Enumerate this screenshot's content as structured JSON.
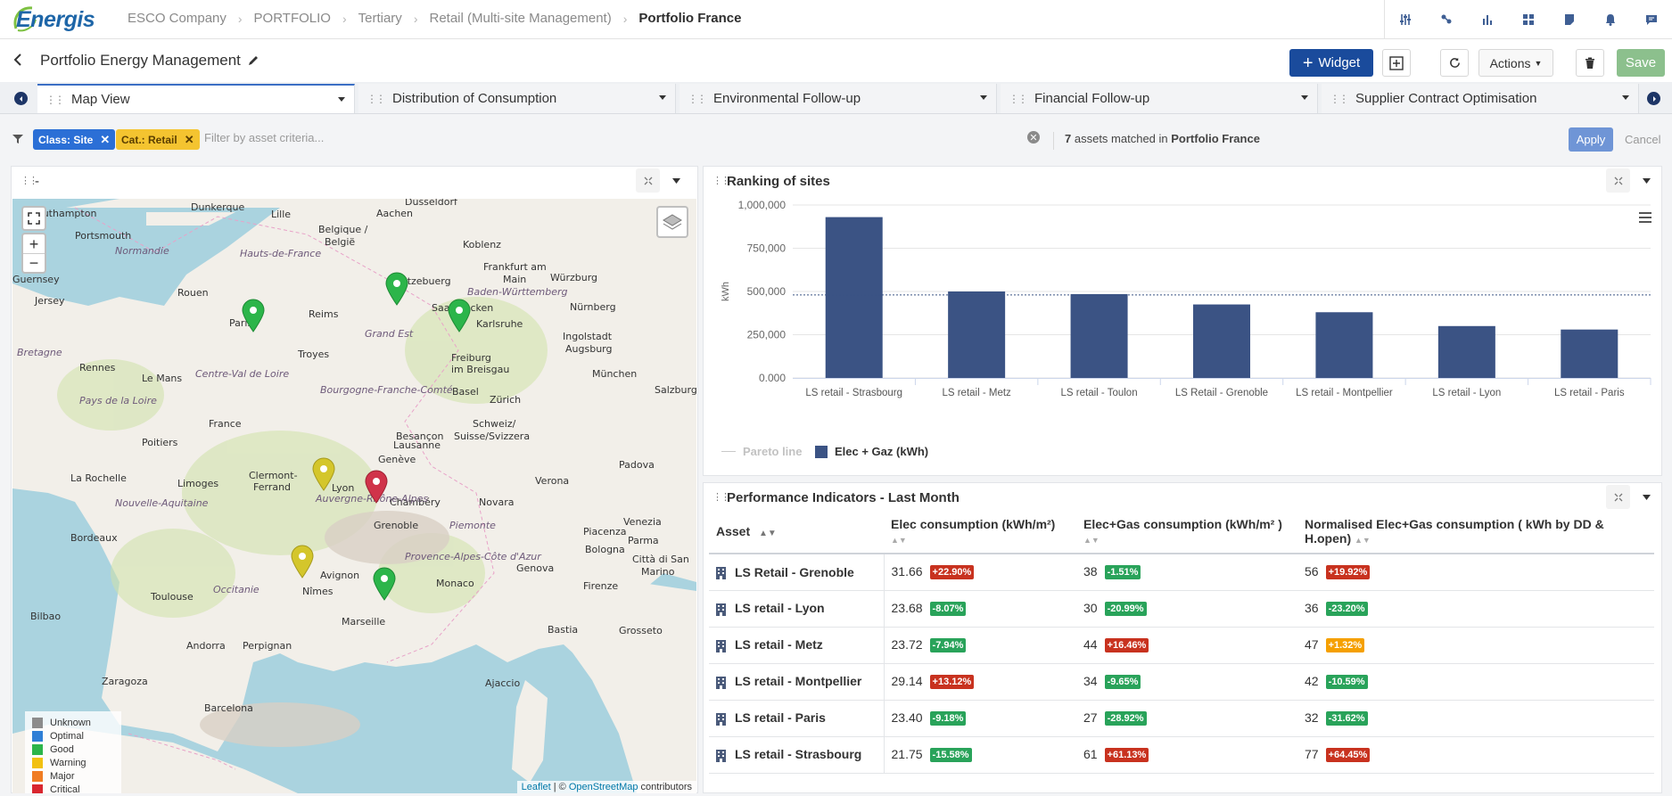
{
  "app": {
    "logo": "Energis"
  },
  "breadcrumb": [
    "ESCO Company",
    "PORTFOLIO",
    "Tertiary",
    "Retail (Multi-site Management)",
    "Portfolio France"
  ],
  "top_icons": [
    "sliders-icon",
    "share-nodes-icon",
    "bar-chart-icon",
    "grid-icon",
    "note-icon",
    "bell-icon",
    "chat-icon"
  ],
  "title_bar": {
    "title": "Portfolio Energy Management",
    "widget_label": "Widget",
    "actions_label": "Actions",
    "save_label": "Save"
  },
  "tabs": [
    {
      "label": "Map View",
      "active": true
    },
    {
      "label": "Distribution of Consumption"
    },
    {
      "label": "Environmental Follow-up"
    },
    {
      "label": "Financial Follow-up"
    },
    {
      "label": "Supplier Contract Optimisation"
    }
  ],
  "filter": {
    "chips": [
      "Class: Site",
      "Cat.: Retail"
    ],
    "placeholder": "Filter by asset criteria...",
    "matched_count": "7",
    "matched_text": "assets matched in",
    "matched_portfolio": "Portfolio France",
    "apply_label": "Apply",
    "cancel_label": "Cancel"
  },
  "map_panel": {
    "title": "-",
    "city_labels": [
      "Dunkerque",
      "Lille",
      "Düsseldorf",
      "Aachen",
      "Portsmouth",
      "Southampton",
      "Koblenz",
      "Frankfurt am Main",
      "Würzburg",
      "Letzebuerg",
      "Belgique / België",
      "Saarbrücken",
      "Karlsruhe",
      "Nürnberg",
      "Rouen",
      "Reims",
      "Paris",
      "Grand Est",
      "Ingolstadt",
      "Augsburg",
      "Rennes",
      "Le Mans",
      "Troyes",
      "Freiburg im Breisgau",
      "München",
      "Basel",
      "Zürich",
      "Salzburg",
      "Besançon",
      "France",
      "Poitiers",
      "Schweiz/Suisse/Svizzera",
      "Lausanne",
      "Genève",
      "Clermont-Ferrand",
      "Limoges",
      "La Rochelle",
      "Lyon",
      "Chambéry",
      "Grenoble",
      "Novara",
      "Verona",
      "Padova",
      "Venezia",
      "Bordeaux",
      "Piacenza",
      "Parma",
      "Bologna",
      "Firenze",
      "Avignon",
      "Nîmes",
      "Monaco",
      "Genova",
      "Toulouse",
      "Marseille",
      "Perpignan",
      "Andorra",
      "Bilbao",
      "Zaragoza",
      "Barcelona",
      "Ajaccio",
      "Bastia",
      "Grosseto",
      "Città di San Marino",
      "Jersey",
      "Guernsey",
      "Occitanie",
      "Nouvelle-Aquitaine",
      "Bretagne",
      "Normandie",
      "Hauts-de-France",
      "Centre-Val de Loire",
      "Auvergne-Rhône-Alpes",
      "Provence-Alpes-Côte d'Azur",
      "Piemonte",
      "Baden-Württemberg",
      "Bourgogne-Franche-Comté",
      "Pays de la Loire",
      "Grand Est"
    ],
    "legend": [
      {
        "label": "Unknown",
        "color": "#8c8c8c"
      },
      {
        "label": "Optimal",
        "color": "#2f7fd6"
      },
      {
        "label": "Good",
        "color": "#2cb54a"
      },
      {
        "label": "Warning",
        "color": "#f2c10f"
      },
      {
        "label": "Major",
        "color": "#f07c22"
      },
      {
        "label": "Critical",
        "color": "#d9262f"
      }
    ],
    "markers": [
      {
        "site": "LS retail - Paris",
        "status": "Good",
        "color": "#2cb54a"
      },
      {
        "site": "LS retail - Metz",
        "status": "Good",
        "color": "#2cb54a"
      },
      {
        "site": "LS retail - Strasbourg",
        "status": "Good",
        "color": "#2cb54a"
      },
      {
        "site": "LS retail - Lyon",
        "status": "Warning",
        "color": "#d4c62b"
      },
      {
        "site": "LS Retail - Grenoble",
        "status": "Critical",
        "color": "#d0334a"
      },
      {
        "site": "LS retail - Montpellier",
        "status": "Warning",
        "color": "#d4c62b"
      },
      {
        "site": "LS retail - Toulon",
        "status": "Good",
        "color": "#2cb54a"
      }
    ],
    "attribution": {
      "leaflet": "Leaflet",
      "sep": " | © ",
      "osm": "OpenStreetMap",
      "suffix": " contributors"
    }
  },
  "ranking_panel": {
    "title": "Ranking of sites"
  },
  "chart_data": {
    "type": "bar",
    "title": "Ranking of sites",
    "categories": [
      "LS retail - Strasbourg",
      "LS retail - Metz",
      "LS retail - Toulon",
      "LS Retail - Grenoble",
      "LS retail - Montpellier",
      "LS retail - Lyon",
      "LS retail - Paris"
    ],
    "series": [
      {
        "name": "Elec + Gaz (kWh)",
        "values": [
          930000,
          500000,
          485000,
          425000,
          380000,
          300000,
          280000
        ],
        "color": "#3b5384"
      }
    ],
    "pareto_line": {
      "name": "Pareto line",
      "value": 480000
    },
    "ylabel": "kWh",
    "ylim": [
      0,
      1000000
    ],
    "yticks": [
      "0.000",
      "250,000",
      "500,000",
      "750,000",
      "1,000,000"
    ],
    "legend": [
      "Pareto line",
      "Elec + Gaz (kWh)"
    ]
  },
  "performance_panel": {
    "title": "Performance Indicators - Last Month",
    "columns": [
      "Asset",
      "Elec consumption (kWh/m²)",
      "Elec+Gas consumption (kWh/m² )",
      "Normalised Elec+Gas consumption ( kWh by DD & H.open)"
    ],
    "rows": [
      {
        "asset": "LS Retail - Grenoble",
        "c1": "31.66",
        "b1": "+22.90%",
        "t1": "red",
        "c2": "38",
        "b2": "-1.51%",
        "t2": "green",
        "c3": "56",
        "b3": "+19.92%",
        "t3": "red"
      },
      {
        "asset": "LS retail - Lyon",
        "c1": "23.68",
        "b1": "-8.07%",
        "t1": "green",
        "c2": "30",
        "b2": "-20.99%",
        "t2": "green",
        "c3": "36",
        "b3": "-23.20%",
        "t3": "green"
      },
      {
        "asset": "LS retail - Metz",
        "c1": "23.72",
        "b1": "-7.94%",
        "t1": "green",
        "c2": "44",
        "b2": "+16.46%",
        "t2": "red",
        "c3": "47",
        "b3": "+1.32%",
        "t3": "orange"
      },
      {
        "asset": "LS retail - Montpellier",
        "c1": "29.14",
        "b1": "+13.12%",
        "t1": "red",
        "c2": "34",
        "b2": "-9.65%",
        "t2": "green",
        "c3": "42",
        "b3": "-10.59%",
        "t3": "green"
      },
      {
        "asset": "LS retail - Paris",
        "c1": "23.40",
        "b1": "-9.18%",
        "t1": "green",
        "c2": "27",
        "b2": "-28.92%",
        "t2": "green",
        "c3": "32",
        "b3": "-31.62%",
        "t3": "green"
      },
      {
        "asset": "LS retail - Strasbourg",
        "c1": "21.75",
        "b1": "-15.58%",
        "t1": "green",
        "c2": "61",
        "b2": "+61.13%",
        "t2": "red",
        "c3": "77",
        "b3": "+64.45%",
        "t3": "red"
      }
    ]
  }
}
